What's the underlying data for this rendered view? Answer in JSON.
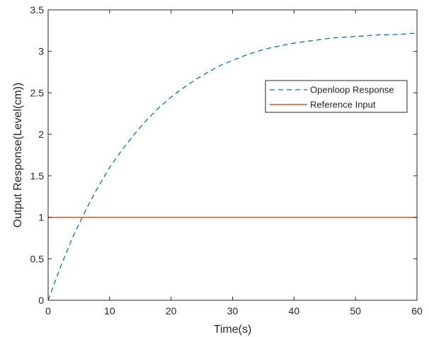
{
  "chart_data": {
    "type": "line",
    "xlabel": "Time(s)",
    "ylabel": "Output Response(Level(cm))",
    "xlim": [
      0,
      60
    ],
    "ylim": [
      0,
      3.5
    ],
    "xticks": [
      0,
      10,
      20,
      30,
      40,
      50,
      60
    ],
    "xtick_labels": [
      "0",
      "10",
      "20",
      "30",
      "40",
      "50",
      "60"
    ],
    "yticks": [
      0,
      0.5,
      1,
      1.5,
      2,
      2.5,
      3,
      3.5
    ],
    "ytick_labels": [
      "0",
      "0.5",
      "1",
      "1.5",
      "2",
      "2.5",
      "3",
      "3.5"
    ],
    "grid": false,
    "legend_position": "top-right",
    "series": [
      {
        "name": "Openloop Response",
        "color": "#0072BD",
        "style": "dashed",
        "x": [
          0,
          2,
          4,
          6,
          8,
          10,
          12,
          14,
          16,
          18,
          20,
          22,
          24,
          26,
          28,
          30,
          32,
          34,
          36,
          38,
          40,
          42,
          44,
          46,
          48,
          50,
          52,
          54,
          56,
          58,
          60
        ],
        "y": [
          0,
          0.4,
          0.76,
          1.07,
          1.35,
          1.6,
          1.81,
          2.0,
          2.17,
          2.32,
          2.45,
          2.56,
          2.66,
          2.75,
          2.83,
          2.89,
          2.95,
          3.0,
          3.04,
          3.07,
          3.1,
          3.12,
          3.14,
          3.16,
          3.17,
          3.18,
          3.19,
          3.2,
          3.2,
          3.21,
          3.22
        ]
      },
      {
        "name": "Reference Input",
        "color": "#D95319",
        "style": "solid",
        "x": [
          0,
          60
        ],
        "y": [
          1,
          1
        ]
      }
    ]
  }
}
